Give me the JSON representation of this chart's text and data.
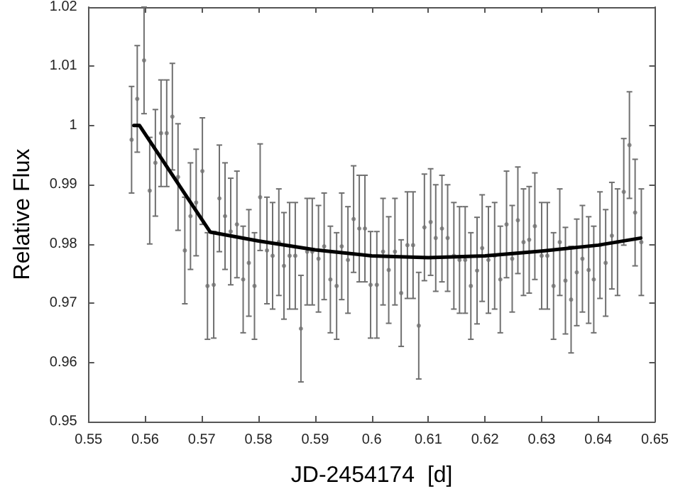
{
  "chart_data": {
    "type": "scatter",
    "xlabel": "JD-2454174  [d]",
    "ylabel": "Relative Flux",
    "xlim": [
      0.55,
      0.65
    ],
    "xticks": [
      0.55,
      0.56,
      0.57,
      0.58,
      0.59,
      0.6,
      0.61,
      0.62,
      0.63,
      0.64,
      0.65
    ],
    "ylim": [
      0.95,
      1.02
    ],
    "yticks": [
      0.95,
      0.96,
      0.97,
      0.98,
      0.99,
      1,
      1.01,
      1.02
    ],
    "grid": false,
    "series": [
      {
        "color": "#707070",
        "marker": "circle",
        "x": [
          0.5576,
          0.5586,
          0.5598,
          0.5608,
          0.5618,
          0.5628,
          0.5638,
          0.5648,
          0.5658,
          0.567,
          0.568,
          0.569,
          0.5701,
          0.571,
          0.5721,
          0.5731,
          0.5741,
          0.5751,
          0.5762,
          0.5773,
          0.5783,
          0.5793,
          0.5803,
          0.5815,
          0.5825,
          0.5836,
          0.5845,
          0.5855,
          0.5865,
          0.5875,
          0.5886,
          0.5895,
          0.5906,
          0.5916,
          0.5927,
          0.5938,
          0.5947,
          0.5958,
          0.5968,
          0.5978,
          0.5988,
          0.5998,
          0.6009,
          0.602,
          0.603,
          0.6041,
          0.6052,
          0.6063,
          0.6073,
          0.6083,
          0.6093,
          0.6104,
          0.6113,
          0.6124,
          0.6134,
          0.6145,
          0.6155,
          0.6165,
          0.6175,
          0.6186,
          0.6195,
          0.6206,
          0.6217,
          0.6227,
          0.6238,
          0.6248,
          0.6258,
          0.6268,
          0.6278,
          0.6288,
          0.63,
          0.631,
          0.6321,
          0.6332,
          0.6342,
          0.6352,
          0.6362,
          0.6372,
          0.6383,
          0.6392,
          0.6403,
          0.6413,
          0.6424,
          0.6434,
          0.6445,
          0.6455,
          0.6465,
          0.6476
        ],
        "values": [
          0.9976,
          1.0045,
          1.011,
          0.989,
          0.9937,
          0.9987,
          0.9987,
          1.0015,
          0.9913,
          0.9789,
          0.9847,
          0.987,
          0.9923,
          0.9729,
          0.9731,
          0.9877,
          0.9847,
          0.9821,
          0.9833,
          0.974,
          0.9768,
          0.9729,
          0.9879,
          0.9789,
          0.978,
          0.9803,
          0.9763,
          0.978,
          0.978,
          0.9657,
          0.9787,
          0.9787,
          0.9775,
          0.9796,
          0.974,
          0.9729,
          0.9796,
          0.9773,
          0.9842,
          0.9826,
          0.9826,
          0.9731,
          0.9731,
          0.9787,
          0.9756,
          0.9787,
          0.9717,
          0.9798,
          0.9798,
          0.9662,
          0.9828,
          0.9837,
          0.981,
          0.9826,
          0.981,
          0.978,
          0.9773,
          0.9773,
          0.9729,
          0.9755,
          0.9793,
          0.9773,
          0.978,
          0.974,
          0.9833,
          0.9775,
          0.984,
          0.9803,
          0.9807,
          0.983,
          0.978,
          0.978,
          0.9729,
          0.9803,
          0.9738,
          0.9706,
          0.9752,
          0.9775,
          0.9756,
          0.974,
          0.9798,
          0.9768,
          0.9814,
          0.9803,
          0.9888,
          0.9967,
          0.9853,
          0.9803
        ],
        "errors": [
          0.009,
          0.009,
          0.009,
          0.009,
          0.009,
          0.009,
          0.009,
          0.009,
          0.009,
          0.009,
          0.009,
          0.009,
          0.009,
          0.009,
          0.009,
          0.009,
          0.009,
          0.009,
          0.009,
          0.009,
          0.009,
          0.009,
          0.009,
          0.009,
          0.009,
          0.009,
          0.009,
          0.009,
          0.009,
          0.009,
          0.009,
          0.009,
          0.009,
          0.009,
          0.009,
          0.009,
          0.009,
          0.009,
          0.009,
          0.009,
          0.009,
          0.009,
          0.009,
          0.009,
          0.009,
          0.009,
          0.009,
          0.009,
          0.009,
          0.009,
          0.009,
          0.009,
          0.009,
          0.009,
          0.009,
          0.009,
          0.009,
          0.009,
          0.009,
          0.009,
          0.009,
          0.009,
          0.009,
          0.009,
          0.009,
          0.009,
          0.009,
          0.009,
          0.009,
          0.009,
          0.009,
          0.009,
          0.009,
          0.009,
          0.009,
          0.009,
          0.009,
          0.009,
          0.009,
          0.009,
          0.009,
          0.009,
          0.009,
          0.009,
          0.009,
          0.009,
          0.009,
          0.009
        ]
      },
      {
        "type": "line",
        "color": "#000000",
        "x": [
          0.558,
          0.559,
          0.5715,
          0.58,
          0.59,
          0.6,
          0.61,
          0.62,
          0.63,
          0.64,
          0.6475
        ],
        "values": [
          1.0,
          1.0,
          0.982,
          0.9805,
          0.979,
          0.978,
          0.9777,
          0.978,
          0.9788,
          0.9798,
          0.981
        ]
      }
    ]
  }
}
